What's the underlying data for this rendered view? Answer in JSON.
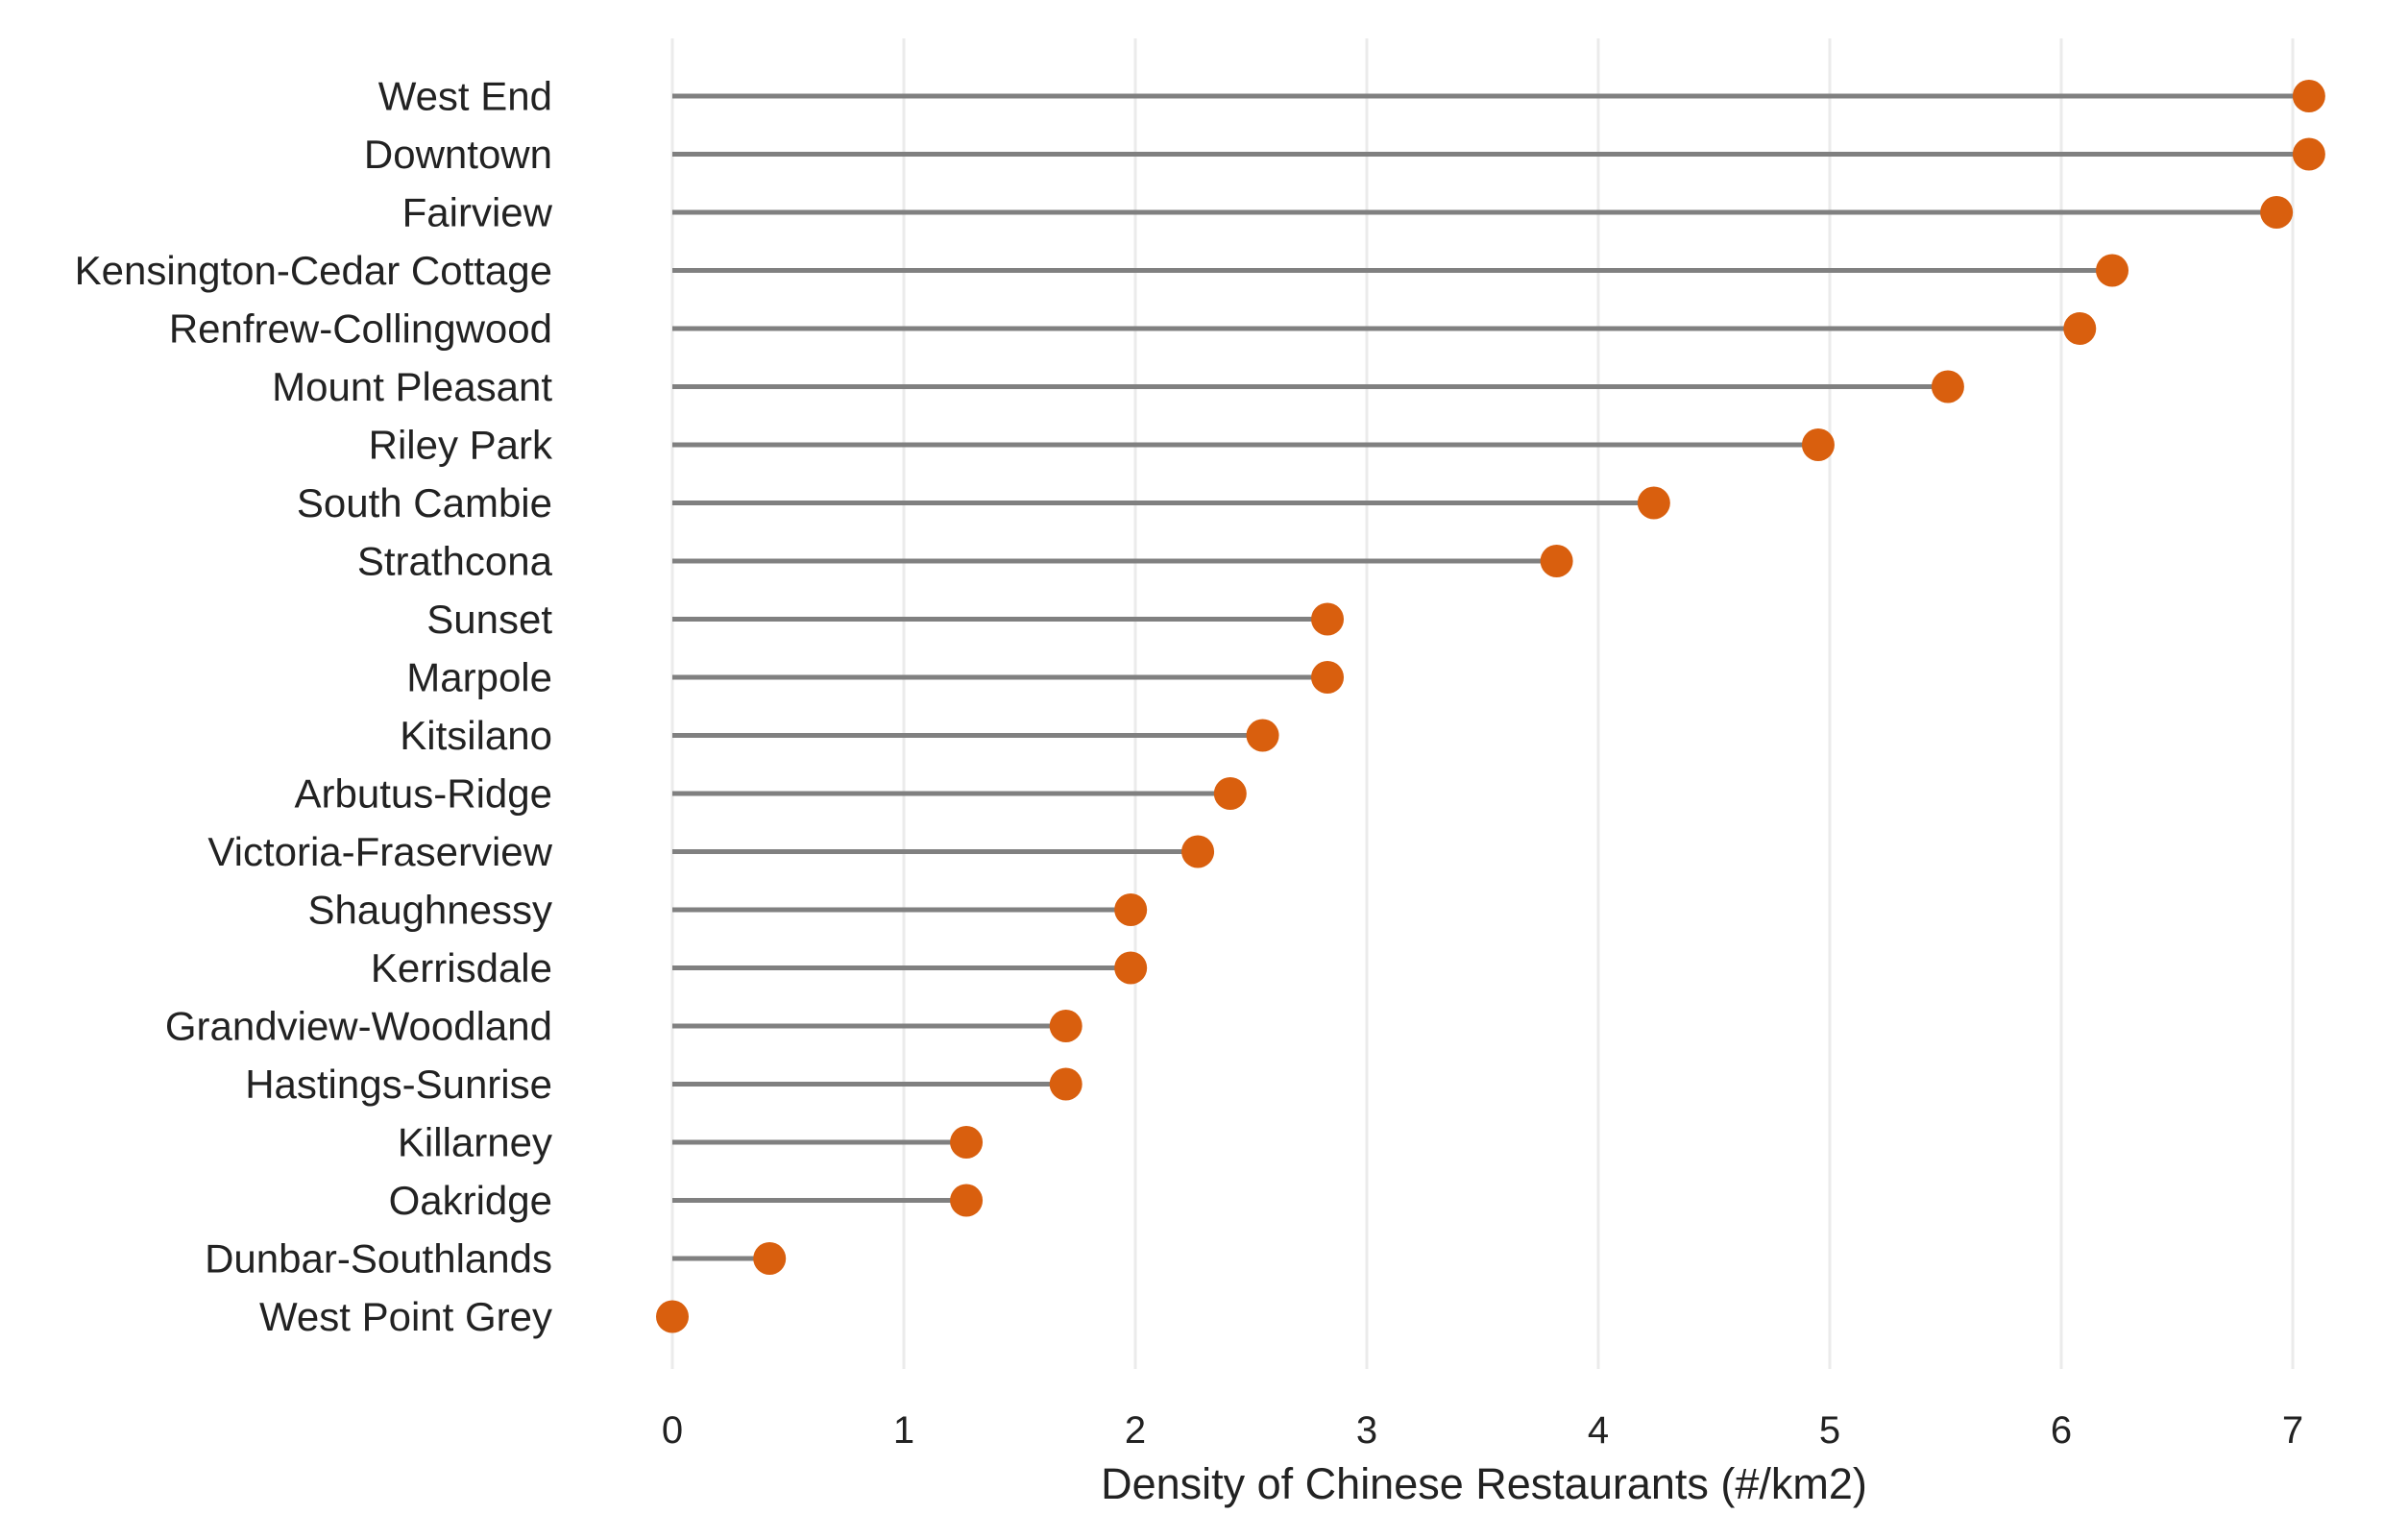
{
  "chart_data": {
    "type": "lollipop",
    "title": "",
    "xlabel": "Density of Chinese Restaurants (#/km2)",
    "ylabel": "",
    "xlim": [
      0,
      7.1
    ],
    "xticks": [
      "0",
      "1",
      "2",
      "3",
      "4",
      "5",
      "6",
      "7"
    ],
    "grid": "vertical",
    "stem_color": "#808080",
    "dot_color": "#D95F0E",
    "categories": [
      "West End",
      "Downtown",
      "Fairview",
      "Kensington-Cedar Cottage",
      "Renfrew-Collingwood",
      "Mount Pleasant",
      "Riley Park",
      "South Cambie",
      "Strathcona",
      "Sunset",
      "Marpole",
      "Kitsilano",
      "Arbutus-Ridge",
      "Victoria-Fraserview",
      "Shaughnessy",
      "Kerrisdale",
      "Grandview-Woodland",
      "Hastings-Sunrise",
      "Killarney",
      "Oakridge",
      "Dunbar-Southlands",
      "West Point Grey"
    ],
    "values": [
      7.07,
      7.07,
      6.93,
      6.22,
      6.08,
      5.51,
      4.95,
      4.24,
      3.82,
      2.83,
      2.83,
      2.55,
      2.41,
      2.27,
      1.98,
      1.98,
      1.7,
      1.7,
      1.27,
      1.27,
      0.42,
      0.0
    ]
  }
}
